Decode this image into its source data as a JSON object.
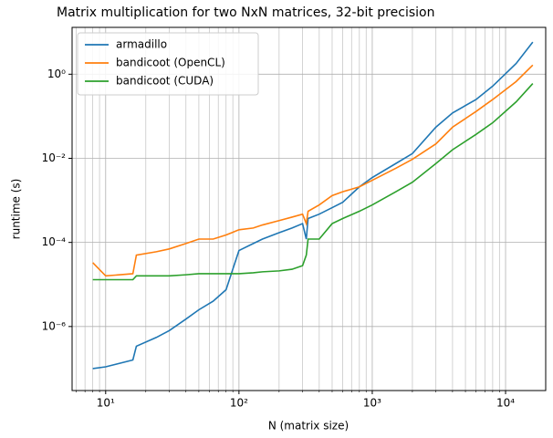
{
  "chart_data": {
    "type": "line",
    "title": "Matrix multiplication for two NxN matrices, 32-bit precision",
    "xlabel": "N (matrix size)",
    "ylabel": "runtime (s)",
    "xscale": "log",
    "yscale": "log",
    "grid": true,
    "legend": "upper left",
    "x": [
      8,
      10,
      16,
      17,
      24,
      30,
      40,
      50,
      64,
      80,
      100,
      128,
      150,
      200,
      250,
      300,
      320,
      330,
      400,
      500,
      600,
      800,
      1000,
      1500,
      2000,
      3000,
      4000,
      6000,
      8000,
      12000,
      16000
    ],
    "series": [
      {
        "name": "armadillo",
        "color": "#1f77b4",
        "values": [
          1e-07,
          1.1e-07,
          1.6e-07,
          3.4e-07,
          5.5e-07,
          8e-07,
          1.5e-06,
          2.5e-06,
          4e-06,
          7.5e-06,
          6.4e-05,
          9.4e-05,
          0.00012,
          0.00017,
          0.00022,
          0.00028,
          0.00012,
          0.00037,
          0.00047,
          0.00067,
          0.0009,
          0.0021,
          0.0035,
          0.0075,
          0.013,
          0.055,
          0.12,
          0.25,
          0.52,
          1.8,
          5.8
        ]
      },
      {
        "name": "bandicoot (OpenCL)",
        "color": "#ff7f0e",
        "values": [
          3.3e-05,
          1.6e-05,
          1.8e-05,
          5e-05,
          6e-05,
          7e-05,
          9.4e-05,
          0.00012,
          0.00012,
          0.00015,
          0.0002,
          0.00022,
          0.00026,
          0.00033,
          0.0004,
          0.00047,
          0.00028,
          0.00055,
          0.00078,
          0.0013,
          0.0016,
          0.0021,
          0.003,
          0.0058,
          0.0095,
          0.022,
          0.055,
          0.13,
          0.25,
          0.67,
          1.65
        ]
      },
      {
        "name": "bandicoot (CUDA)",
        "color": "#2ca02c",
        "values": [
          1.3e-05,
          1.3e-05,
          1.3e-05,
          1.6e-05,
          1.6e-05,
          1.6e-05,
          1.7e-05,
          1.8e-05,
          1.8e-05,
          1.8e-05,
          1.8e-05,
          1.9e-05,
          2e-05,
          2.1e-05,
          2.3e-05,
          2.8e-05,
          5e-05,
          0.00012,
          0.00012,
          0.00028,
          0.00037,
          0.00055,
          0.00078,
          0.0016,
          0.0027,
          0.0075,
          0.016,
          0.037,
          0.07,
          0.22,
          0.6
        ]
      }
    ],
    "xlim": [
      5.6,
      20000
    ],
    "ylim": [
      3e-08,
      13
    ],
    "xticks": [
      {
        "value": 10,
        "label": "10¹"
      },
      {
        "value": 100,
        "label": "10²"
      },
      {
        "value": 1000,
        "label": "10³"
      },
      {
        "value": 10000,
        "label": "10⁴"
      }
    ],
    "xminorticks": [
      6,
      7,
      8,
      9,
      20,
      30,
      40,
      50,
      60,
      70,
      80,
      90,
      200,
      300,
      400,
      500,
      600,
      700,
      800,
      900,
      2000,
      3000,
      4000,
      5000,
      6000,
      7000,
      8000,
      9000
    ],
    "yticks": [
      {
        "value": 1e-06,
        "label": "10⁻⁶"
      },
      {
        "value": 0.0001,
        "label": "10⁻⁴"
      },
      {
        "value": 0.01,
        "label": "10⁻²"
      },
      {
        "value": 1,
        "label": "10⁰"
      }
    ]
  }
}
